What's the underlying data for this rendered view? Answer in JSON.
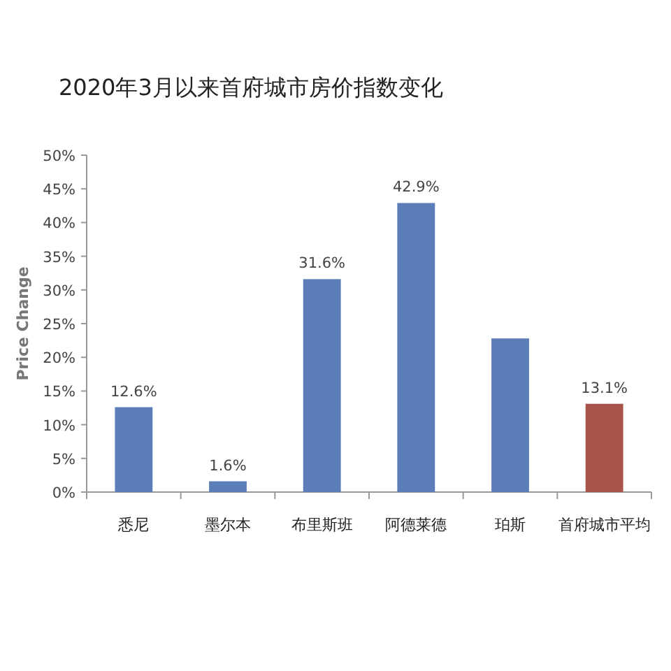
{
  "chart_data": {
    "type": "bar",
    "title": "2020年3月以来首府城市房价指数变化",
    "ylabel": "Price Change",
    "categories": [
      "悉尼",
      "墨尔本",
      "布里斯班",
      "阿德莱德",
      "珀斯",
      "首府城市平均"
    ],
    "values": [
      12.6,
      1.6,
      31.6,
      42.9,
      22.8,
      13.1
    ],
    "colors": [
      "#5b7db8",
      "#5b7db8",
      "#5b7db8",
      "#5b7db8",
      "#5b7db8",
      "#a9544b"
    ],
    "value_labels": [
      "12.6%",
      "1.6%",
      "31.6%",
      "42.9%",
      null,
      "13.1%"
    ],
    "ylim": [
      0,
      50
    ],
    "yticks": [
      {
        "value": 0,
        "label": "0%"
      },
      {
        "value": 5,
        "label": "5%"
      },
      {
        "value": 10,
        "label": "10%"
      },
      {
        "value": 15,
        "label": "15%"
      },
      {
        "value": 20,
        "label": "20%"
      },
      {
        "value": 25,
        "label": "25%"
      },
      {
        "value": 30,
        "label": "30%"
      },
      {
        "value": 35,
        "label": "35%"
      },
      {
        "value": 40,
        "label": "40%"
      },
      {
        "value": 45,
        "label": "45%"
      },
      {
        "value": 50,
        "label": "50%"
      }
    ]
  }
}
